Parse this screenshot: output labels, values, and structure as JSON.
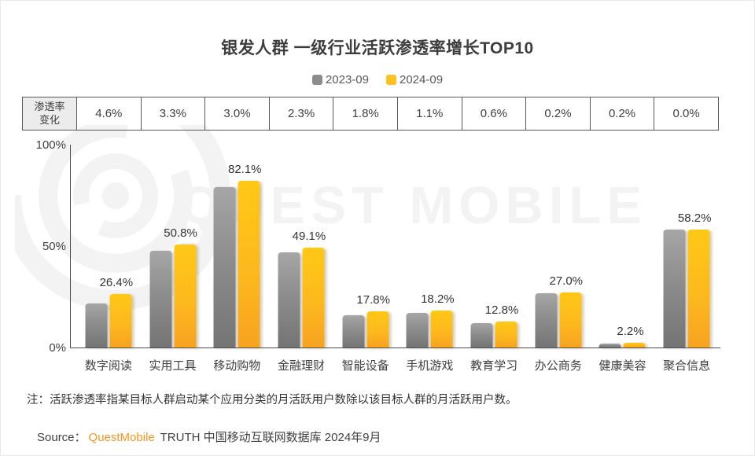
{
  "title": "银发人群 一级行业活跃渗透率增长TOP10",
  "legend": {
    "items": [
      {
        "label": "2023-09",
        "color": "#8c8c8c"
      },
      {
        "label": "2024-09",
        "color": "#fec220"
      }
    ]
  },
  "change_table": {
    "header_line1": "渗透率",
    "header_line2": "变化",
    "values": [
      "4.6%",
      "3.3%",
      "3.0%",
      "2.3%",
      "1.8%",
      "1.1%",
      "0.6%",
      "0.2%",
      "0.2%",
      "0.0%"
    ]
  },
  "chart_data": {
    "type": "bar",
    "title": "银发人群 一级行业活跃渗透率增长TOP10",
    "categories": [
      "数字阅读",
      "实用工具",
      "移动购物",
      "金融理财",
      "智能设备",
      "手机游戏",
      "教育学习",
      "办公商务",
      "健康美容",
      "聚合信息"
    ],
    "series": [
      {
        "name": "2023-09",
        "color_hint": "#8c8c8c",
        "values": [
          21.8,
          47.5,
          79.1,
          46.8,
          16.0,
          17.1,
          12.2,
          26.8,
          2.0,
          58.2
        ]
      },
      {
        "name": "2024-09",
        "color_hint": "#fec220",
        "values": [
          26.4,
          50.8,
          82.1,
          49.1,
          17.8,
          18.2,
          12.8,
          27.0,
          2.2,
          58.2
        ]
      }
    ],
    "data_labels_2024": [
      "26.4%",
      "50.8%",
      "82.1%",
      "49.1%",
      "17.8%",
      "18.2%",
      "12.8%",
      "27.0%",
      "2.2%",
      "58.2%"
    ],
    "penetration_change": [
      4.6,
      3.3,
      3.0,
      2.3,
      1.8,
      1.1,
      0.6,
      0.2,
      0.2,
      0.0
    ],
    "xlabel": "",
    "ylabel": "",
    "y_ticks": [
      "100%",
      "50%",
      "0%"
    ],
    "ylim": [
      0,
      100
    ],
    "grid": false,
    "legend_position": "top-center"
  },
  "axis": {
    "tick_100": "100%",
    "tick_50": "50%",
    "tick_0": "0%"
  },
  "note": "注：活跃渗透率指某目标人群启动某个应用分类的月活跃用户数除以该目标人群的月活跃用户数。",
  "source": {
    "prefix": "Source：",
    "brand": "QuestMobile",
    "suffix": " TRUTH 中国移动互联网数据库 2024年9月"
  },
  "watermark": {
    "text": "QUEST MOBILE",
    "logo": "questmobile-rings-logo"
  }
}
